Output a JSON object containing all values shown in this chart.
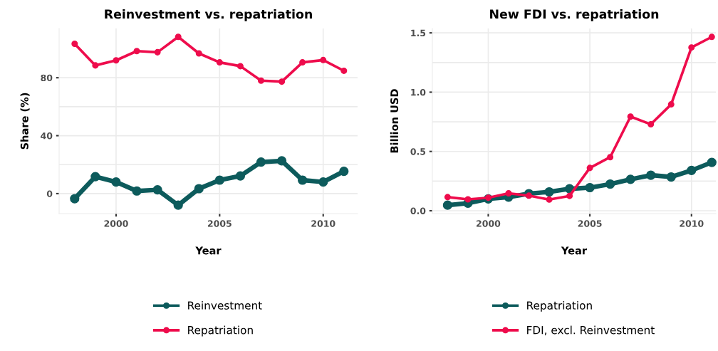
{
  "chart_data": [
    {
      "type": "line",
      "title": "Reinvestment vs. repatriation",
      "xlabel": "Year",
      "ylabel": "Share (%)",
      "x": [
        1998,
        1999,
        2000,
        2001,
        2002,
        2003,
        2004,
        2005,
        2006,
        2007,
        2008,
        2009,
        2010,
        2011
      ],
      "series": [
        {
          "name": "Reinvestment",
          "color": "#0d5b5c",
          "values": [
            -3.5,
            11.7,
            8,
            1.8,
            2.6,
            -8,
            3.4,
            9.3,
            12.2,
            21.8,
            22.6,
            9.3,
            8,
            15.4
          ]
        },
        {
          "name": "Repatriation",
          "color": "#ee0c4c",
          "values": [
            103.4,
            88.5,
            92,
            98.4,
            97.6,
            108.2,
            96.8,
            90.6,
            88,
            78,
            77.3,
            90.6,
            92.2,
            84.8
          ]
        }
      ],
      "xlim": [
        1997.25,
        2011.66
      ],
      "xticks": [
        2000,
        2005,
        2010
      ],
      "ylim": [
        -13.8,
        114
      ],
      "yticks": [
        0,
        40,
        80
      ],
      "grid": true,
      "legend": "bottom",
      "marker": "circle",
      "line_style": "solid"
    },
    {
      "type": "line",
      "title": "New FDI vs. repatriation",
      "xlabel": "Year",
      "ylabel": "Billion USD",
      "x": [
        1998,
        1999,
        2000,
        2001,
        2002,
        2003,
        2004,
        2005,
        2006,
        2007,
        2008,
        2009,
        2010,
        2011
      ],
      "series": [
        {
          "name": "Repatriation",
          "color": "#0d5b5c",
          "values": [
            0.047,
            0.064,
            0.1,
            0.115,
            0.144,
            0.159,
            0.185,
            0.195,
            0.225,
            0.265,
            0.3,
            0.285,
            0.34,
            0.408
          ]
        },
        {
          "name": "FDI, excl. Reinvestment",
          "color": "#ee0c4c",
          "values": [
            0.115,
            0.096,
            0.11,
            0.147,
            0.127,
            0.094,
            0.125,
            0.361,
            0.452,
            0.794,
            0.729,
            0.897,
            1.377,
            1.466
          ]
        }
      ],
      "xlim": [
        1997.25,
        2011.2
      ],
      "xticks": [
        2000,
        2005,
        2010
      ],
      "ylim": [
        -0.024,
        1.537
      ],
      "yticks": [
        {
          "value": 0,
          "label": "0.0"
        },
        {
          "value": 0.5,
          "label": "0.5"
        },
        {
          "value": 1,
          "label": "1.0"
        },
        {
          "value": 1.5,
          "label": "1.5"
        }
      ],
      "grid": true,
      "legend": "bottom",
      "marker": "circle",
      "line_style": "solid"
    }
  ]
}
